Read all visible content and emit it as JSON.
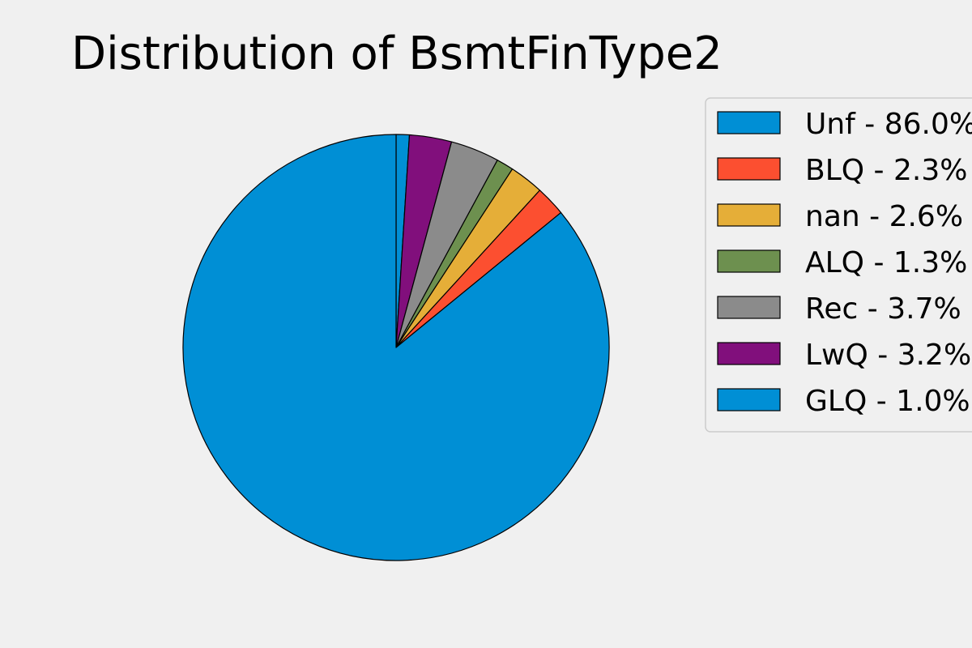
{
  "chart_data": {
    "type": "pie",
    "title": "Distribution of BsmtFinType2",
    "legend_position": "right",
    "slices": [
      {
        "label": "Unf",
        "value": 86.0,
        "legend": "Unf - 86.0%",
        "color": "#008fd5"
      },
      {
        "label": "BLQ",
        "value": 2.3,
        "legend": "BLQ - 2.3%",
        "color": "#fc4f30"
      },
      {
        "label": "nan",
        "value": 2.6,
        "legend": "nan - 2.6%",
        "color": "#e5ae38"
      },
      {
        "label": "ALQ",
        "value": 1.3,
        "legend": "ALQ - 1.3%",
        "color": "#6d904f"
      },
      {
        "label": "Rec",
        "value": 3.7,
        "legend": "Rec - 3.7%",
        "color": "#8b8b8b"
      },
      {
        "label": "LwQ",
        "value": 3.2,
        "legend": "LwQ - 3.2%",
        "color": "#810f7c"
      },
      {
        "label": "GLQ",
        "value": 1.0,
        "legend": "GLQ - 1.0%",
        "color": "#008fd5"
      }
    ]
  }
}
